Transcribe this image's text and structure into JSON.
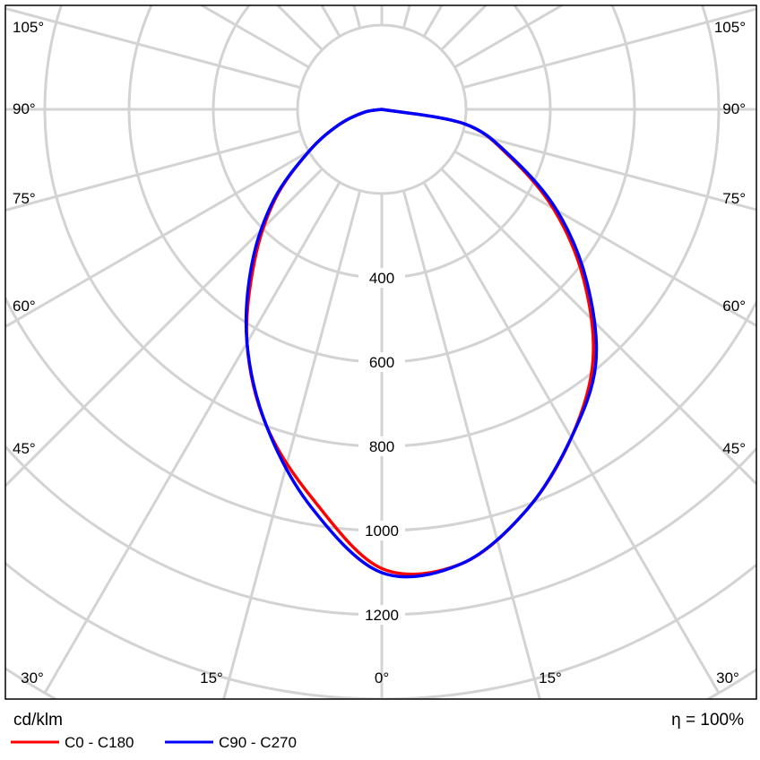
{
  "chart_data": {
    "type": "polar-line",
    "title": "",
    "unit": "cd/klm",
    "efficiency": "η = 100%",
    "radial_ticks": [
      400,
      600,
      800,
      1000,
      1200
    ],
    "radial_tick_labels": [
      "400",
      "600",
      "800",
      "1000",
      "1200"
    ],
    "radial_max": 1400,
    "angle_labels": [
      {
        "text": "105°",
        "side": "left"
      },
      {
        "text": "105°",
        "side": "right"
      },
      {
        "text": "90°",
        "side": "left"
      },
      {
        "text": "90°",
        "side": "right"
      },
      {
        "text": "75°",
        "side": "left"
      },
      {
        "text": "75°",
        "side": "right"
      },
      {
        "text": "60°",
        "side": "left"
      },
      {
        "text": "60°",
        "side": "right"
      },
      {
        "text": "45°",
        "side": "left"
      },
      {
        "text": "45°",
        "side": "right"
      },
      {
        "text": "30°",
        "side": "bottom-left"
      },
      {
        "text": "15°",
        "side": "bottom-left"
      },
      {
        "text": "0°",
        "side": "bottom"
      },
      {
        "text": "15°",
        "side": "bottom-right"
      },
      {
        "text": "30°",
        "side": "bottom-right"
      }
    ],
    "grid": true,
    "legend_position": "bottom-left",
    "series": [
      {
        "name": "C0 - C180",
        "color": "#ff0000",
        "angles_deg": [
          -90,
          -80,
          -70,
          -60,
          -50,
          -40,
          -30,
          -20,
          -10,
          0,
          10,
          20,
          30,
          40,
          50,
          60,
          70,
          80,
          90
        ],
        "values": [
          0,
          45,
          110,
          200,
          330,
          470,
          640,
          800,
          940,
          1090,
          1095,
          1010,
          900,
          780,
          625,
          470,
          320,
          200,
          0
        ]
      },
      {
        "name": "C90 - C270",
        "color": "#0000ff",
        "angles_deg": [
          -90,
          -80,
          -70,
          -60,
          -50,
          -40,
          -30,
          -20,
          -10,
          0,
          10,
          20,
          30,
          40,
          50,
          60,
          70,
          80,
          90
        ],
        "values": [
          0,
          45,
          110,
          200,
          335,
          480,
          640,
          800,
          960,
          1100,
          1095,
          1010,
          900,
          790,
          635,
          480,
          325,
          200,
          0
        ]
      }
    ]
  },
  "legend": {
    "unit_label": "cd/klm",
    "efficiency_label": "η = 100%",
    "items": [
      {
        "label": "C0 - C180",
        "color": "#ff0000"
      },
      {
        "label": "C90 - C270",
        "color": "#0000ff"
      }
    ]
  }
}
